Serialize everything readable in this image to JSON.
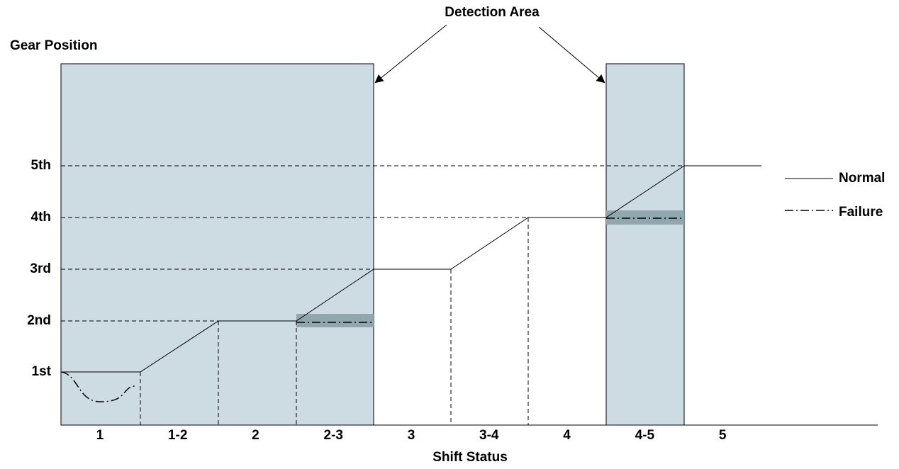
{
  "title": "Detection Area",
  "y_axis": {
    "label": "Gear Position",
    "levels": [
      "1st",
      "2nd",
      "3rd",
      "4th",
      "5th"
    ]
  },
  "x_axis": {
    "label": "Shift Status",
    "categories": [
      "1",
      "1-2",
      "2",
      "2-3",
      "3",
      "3-4",
      "4",
      "4-5",
      "5"
    ]
  },
  "legend": [
    "Normal",
    "Failure"
  ]
}
